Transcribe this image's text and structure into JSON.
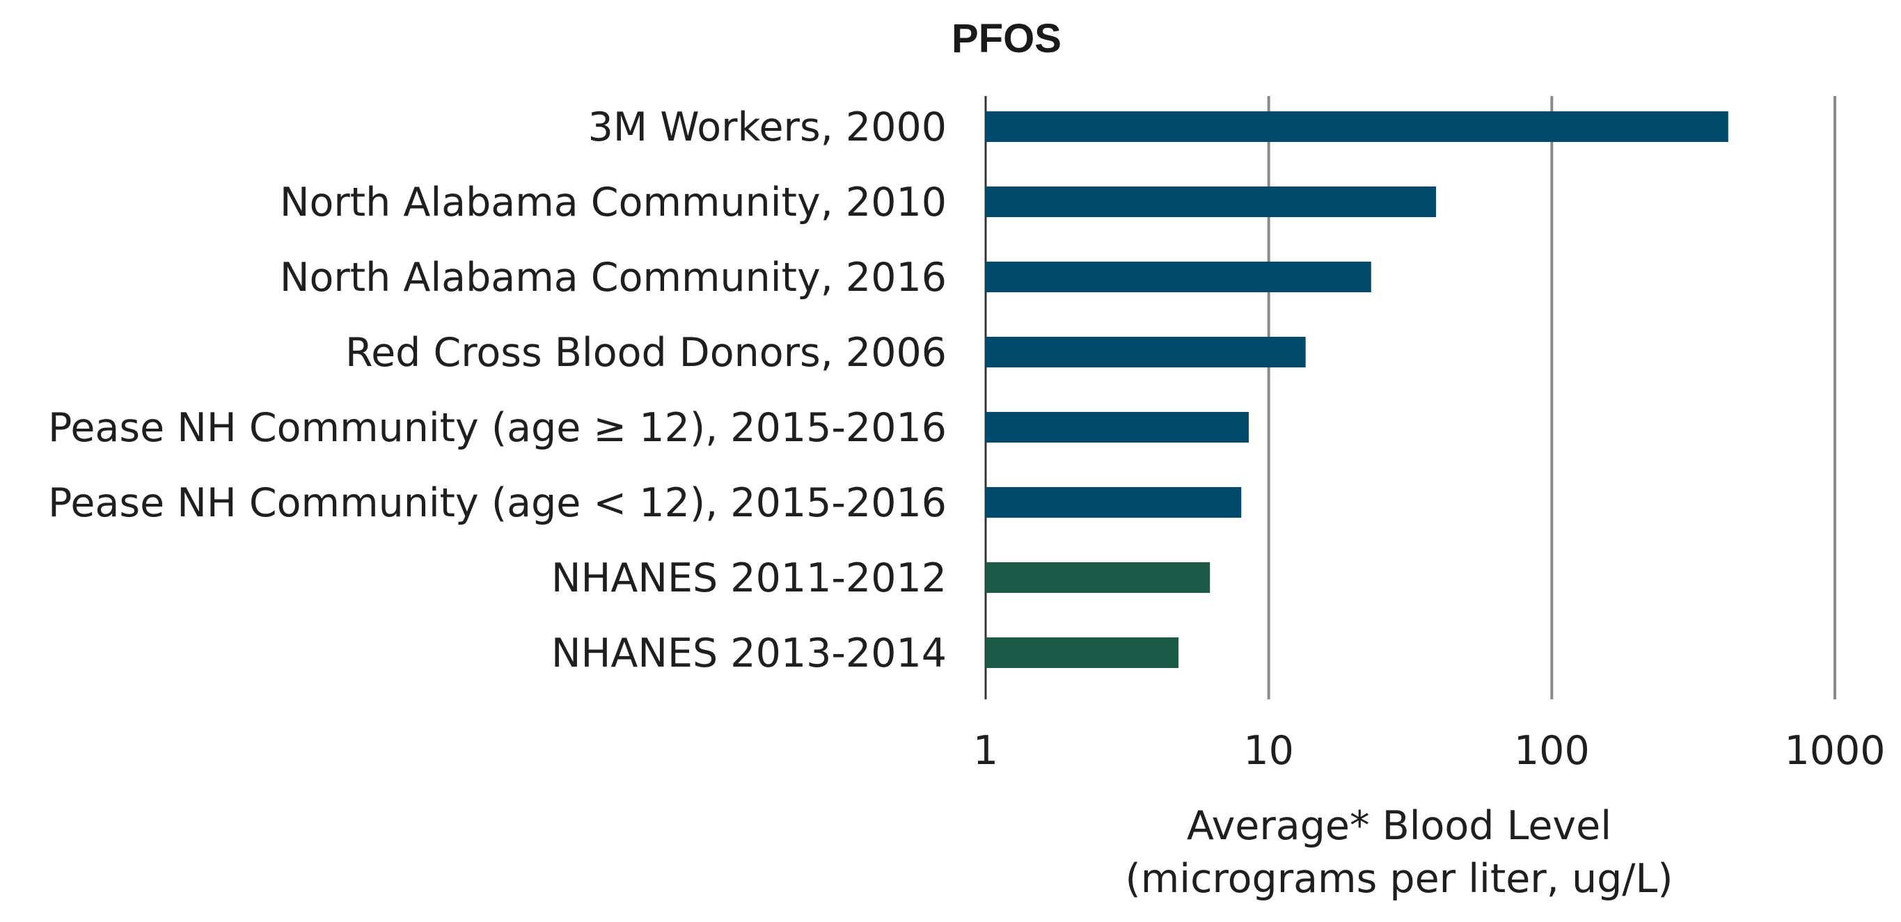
{
  "chart_data": {
    "type": "bar",
    "orientation": "horizontal",
    "title": "PFOS",
    "xscale": "log",
    "xlim": [
      1,
      1000
    ],
    "xticks": [
      1,
      10,
      100,
      1000
    ],
    "xtick_labels": [
      "1",
      "10",
      "100",
      "1000"
    ],
    "xlabel_line1": "Average* Blood Level",
    "xlabel_line2": "(micrograms per liter, ug/L)",
    "grid": "vertical",
    "categories": [
      "3M Workers, 2000",
      "North Alabama Community, 2010",
      "North Alabama Community, 2016",
      "Red Cross Blood Donors, 2006",
      "Pease NH Community (age ≥ 12), 2015-2016",
      "Pease NH Community (age < 12), 2015-2016",
      "NHANES 2011-2012",
      "NHANES 2013-2014"
    ],
    "values": [
      420,
      39,
      23,
      13.5,
      8.5,
      8,
      6.2,
      4.8
    ],
    "bar_colors": [
      "#004b6b",
      "#004b6b",
      "#004b6b",
      "#004b6b",
      "#004b6b",
      "#004b6b",
      "#1b5a47",
      "#1b5a47"
    ]
  }
}
